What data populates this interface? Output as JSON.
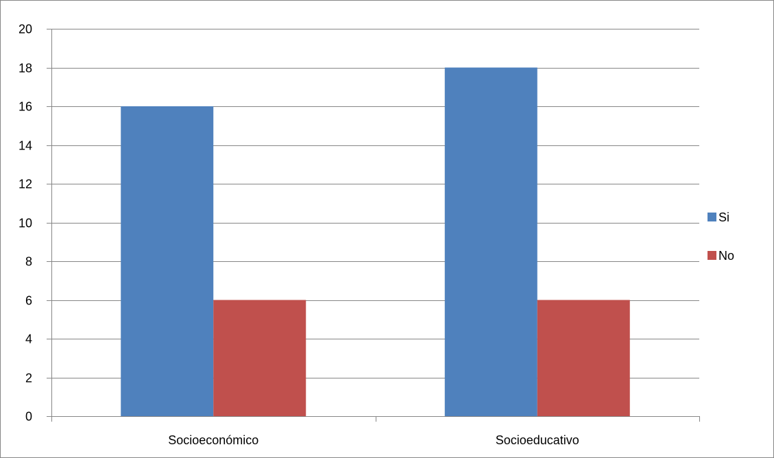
{
  "chart_data": {
    "type": "bar",
    "categories": [
      "Socioeconómico",
      "Socioeducativo"
    ],
    "series": [
      {
        "name": "Si",
        "values": [
          16,
          18
        ],
        "color": "#4F81BD"
      },
      {
        "name": "No",
        "values": [
          6,
          6
        ],
        "color": "#C0504D"
      }
    ],
    "ylim": [
      0,
      20
    ],
    "yticks": [
      0,
      2,
      4,
      6,
      8,
      10,
      12,
      14,
      16,
      18,
      20
    ],
    "grid": true,
    "legend_position": "right",
    "colors": {
      "grid": "#868686",
      "axis": "#868686",
      "border": "#868686"
    }
  }
}
